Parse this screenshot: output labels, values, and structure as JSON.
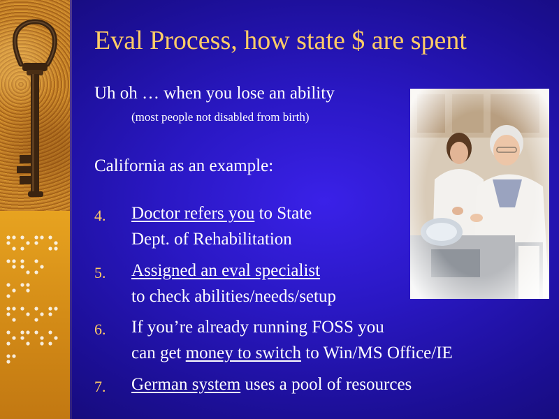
{
  "slide": {
    "title": "Eval Process, how state $ are spent",
    "intro": "Uh oh … when you lose an ability",
    "intro_note": "(most people not disabled from birth)",
    "example_heading": "California as an example:",
    "items": [
      {
        "number": "4.",
        "link_text": "Doctor refers you",
        "text_after": " to State",
        "line2": "Dept. of Rehabilitation"
      },
      {
        "number": "5.",
        "link_text": "Assigned an eval specialist",
        "text_after": "",
        "line2": "to check abilities/needs/setup"
      },
      {
        "number": "6.",
        "line1": "If you’re already running FOSS you",
        "line2_before": "can get ",
        "link_text": "money to switch",
        "line2_after": " to Win/MS Office/IE"
      },
      {
        "number": "7.",
        "link_text": "German system",
        "text_after": " uses a pool of resources ",
        "trailing_glyph": ""
      }
    ]
  },
  "colors": {
    "background": "#2a18c4",
    "title": "#ffcc66",
    "text": "#ffffff",
    "number": "#ffcc66"
  },
  "images": {
    "sidebar_top": "old-key-on-sand",
    "sidebar_bottom": "braille-dots-pattern",
    "photo": "elderly-woman-washing-dishes-with-caregiver"
  }
}
